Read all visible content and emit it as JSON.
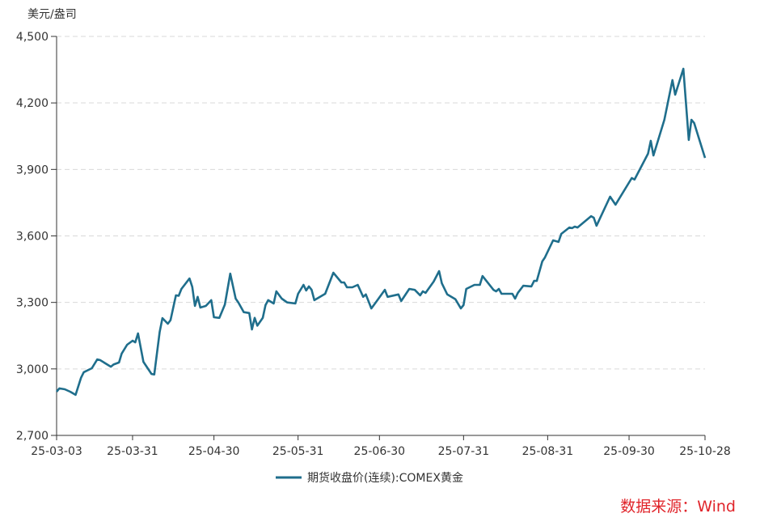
{
  "chart_data": {
    "type": "line",
    "ylabel": "美元/盎司",
    "ylim": [
      2700,
      4500
    ],
    "yticks": [
      2700,
      3000,
      3300,
      3600,
      3900,
      4200,
      4500
    ],
    "ytick_labels": [
      "2,700",
      "3,000",
      "3,300",
      "3,600",
      "3,900",
      "4,200",
      "4,500"
    ],
    "xlim": [
      "2025-03-03",
      "2025-10-28"
    ],
    "xticks": [
      "2025-03-03",
      "2025-03-31",
      "2025-04-30",
      "2025-05-31",
      "2025-06-30",
      "2025-07-31",
      "2025-08-31",
      "2025-09-30",
      "2025-10-28"
    ],
    "xtick_labels": [
      "25-03-03",
      "25-03-31",
      "25-04-30",
      "25-05-31",
      "25-06-30",
      "25-07-31",
      "25-08-31",
      "25-09-30",
      "25-10-28"
    ],
    "grid": "horizontal dashed",
    "legend_position": "bottom",
    "series": [
      {
        "name": "期货收盘价(连续):COMEX黄金",
        "color": "#1f6e8c",
        "points": [
          [
            "2025-03-03",
            2897
          ],
          [
            "2025-03-04",
            2912
          ],
          [
            "2025-03-06",
            2908
          ],
          [
            "2025-03-08",
            2897
          ],
          [
            "2025-03-10",
            2883
          ],
          [
            "2025-03-12",
            2960
          ],
          [
            "2025-03-13",
            2985
          ],
          [
            "2025-03-16",
            3003
          ],
          [
            "2025-03-18",
            3043
          ],
          [
            "2025-03-19",
            3040
          ],
          [
            "2025-03-23",
            3010
          ],
          [
            "2025-03-24",
            3020
          ],
          [
            "2025-03-26",
            3029
          ],
          [
            "2025-03-27",
            3069
          ],
          [
            "2025-03-29",
            3109
          ],
          [
            "2025-03-31",
            3127
          ],
          [
            "2025-04-01",
            3120
          ],
          [
            "2025-04-02",
            3160
          ],
          [
            "2025-04-04",
            3032
          ],
          [
            "2025-04-07",
            2977
          ],
          [
            "2025-04-08",
            2975
          ],
          [
            "2025-04-10",
            3167
          ],
          [
            "2025-04-11",
            3229
          ],
          [
            "2025-04-13",
            3204
          ],
          [
            "2025-04-14",
            3220
          ],
          [
            "2025-04-16",
            3332
          ],
          [
            "2025-04-17",
            3330
          ],
          [
            "2025-04-18",
            3361
          ],
          [
            "2025-04-21",
            3408
          ],
          [
            "2025-04-22",
            3370
          ],
          [
            "2025-04-23",
            3284
          ],
          [
            "2025-04-24",
            3325
          ],
          [
            "2025-04-25",
            3277
          ],
          [
            "2025-04-27",
            3284
          ],
          [
            "2025-04-29",
            3310
          ],
          [
            "2025-04-30",
            3233
          ],
          [
            "2025-05-02",
            3230
          ],
          [
            "2025-05-04",
            3290
          ],
          [
            "2025-05-06",
            3430
          ],
          [
            "2025-05-08",
            3317
          ],
          [
            "2025-05-09",
            3300
          ],
          [
            "2025-05-11",
            3256
          ],
          [
            "2025-05-13",
            3252
          ],
          [
            "2025-05-14",
            3178
          ],
          [
            "2025-05-15",
            3230
          ],
          [
            "2025-05-16",
            3195
          ],
          [
            "2025-05-18",
            3230
          ],
          [
            "2025-05-19",
            3288
          ],
          [
            "2025-05-20",
            3310
          ],
          [
            "2025-05-22",
            3295
          ],
          [
            "2025-05-23",
            3350
          ],
          [
            "2025-05-25",
            3317
          ],
          [
            "2025-05-27",
            3300
          ],
          [
            "2025-05-30",
            3295
          ],
          [
            "2025-05-31",
            3339
          ],
          [
            "2025-06-02",
            3379
          ],
          [
            "2025-06-03",
            3354
          ],
          [
            "2025-06-04",
            3372
          ],
          [
            "2025-06-05",
            3357
          ],
          [
            "2025-06-06",
            3310
          ],
          [
            "2025-06-10",
            3339
          ],
          [
            "2025-06-13",
            3434
          ],
          [
            "2025-06-16",
            3390
          ],
          [
            "2025-06-17",
            3390
          ],
          [
            "2025-06-18",
            3368
          ],
          [
            "2025-06-20",
            3368
          ],
          [
            "2025-06-22",
            3379
          ],
          [
            "2025-06-24",
            3325
          ],
          [
            "2025-06-25",
            3336
          ],
          [
            "2025-06-27",
            3273
          ],
          [
            "2025-06-29",
            3306
          ],
          [
            "2025-07-02",
            3357
          ],
          [
            "2025-07-03",
            3325
          ],
          [
            "2025-07-07",
            3336
          ],
          [
            "2025-07-08",
            3306
          ],
          [
            "2025-07-11",
            3361
          ],
          [
            "2025-07-13",
            3357
          ],
          [
            "2025-07-15",
            3332
          ],
          [
            "2025-07-16",
            3350
          ],
          [
            "2025-07-17",
            3343
          ],
          [
            "2025-07-20",
            3394
          ],
          [
            "2025-07-22",
            3441
          ],
          [
            "2025-07-23",
            3386
          ],
          [
            "2025-07-25",
            3336
          ],
          [
            "2025-07-28",
            3314
          ],
          [
            "2025-07-30",
            3273
          ],
          [
            "2025-07-31",
            3288
          ],
          [
            "2025-08-01",
            3361
          ],
          [
            "2025-08-04",
            3379
          ],
          [
            "2025-08-06",
            3379
          ],
          [
            "2025-08-07",
            3419
          ],
          [
            "2025-08-11",
            3357
          ],
          [
            "2025-08-12",
            3350
          ],
          [
            "2025-08-13",
            3361
          ],
          [
            "2025-08-14",
            3339
          ],
          [
            "2025-08-18",
            3339
          ],
          [
            "2025-08-19",
            3317
          ],
          [
            "2025-08-20",
            3343
          ],
          [
            "2025-08-22",
            3375
          ],
          [
            "2025-08-25",
            3372
          ],
          [
            "2025-08-26",
            3397
          ],
          [
            "2025-08-27",
            3397
          ],
          [
            "2025-08-29",
            3485
          ],
          [
            "2025-08-30",
            3503
          ],
          [
            "2025-09-02",
            3580
          ],
          [
            "2025-09-04",
            3573
          ],
          [
            "2025-09-05",
            3609
          ],
          [
            "2025-09-08",
            3638
          ],
          [
            "2025-09-09",
            3635
          ],
          [
            "2025-09-10",
            3642
          ],
          [
            "2025-09-11",
            3638
          ],
          [
            "2025-09-16",
            3689
          ],
          [
            "2025-09-17",
            3682
          ],
          [
            "2025-09-18",
            3646
          ],
          [
            "2025-09-23",
            3777
          ],
          [
            "2025-09-25",
            3741
          ],
          [
            "2025-10-01",
            3861
          ],
          [
            "2025-10-02",
            3854
          ],
          [
            "2025-10-07",
            3971
          ],
          [
            "2025-10-08",
            4029
          ],
          [
            "2025-10-09",
            3963
          ],
          [
            "2025-10-13",
            4124
          ],
          [
            "2025-10-16",
            4303
          ],
          [
            "2025-10-17",
            4237
          ],
          [
            "2025-10-20",
            4354
          ],
          [
            "2025-10-22",
            4033
          ],
          [
            "2025-10-23",
            4124
          ],
          [
            "2025-10-24",
            4109
          ],
          [
            "2025-10-28",
            3952
          ]
        ]
      }
    ]
  },
  "source_note": "数据来源：Wind"
}
